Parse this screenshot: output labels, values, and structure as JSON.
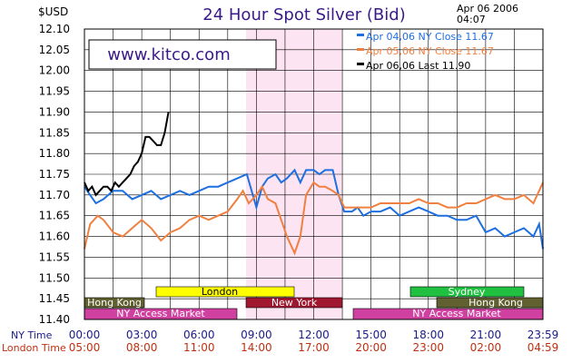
{
  "header": {
    "currency": "$USD",
    "title": "24 Hour Spot Silver (Bid)",
    "date": "Apr 06 2006",
    "time": "04:07",
    "watermark": "www.kitco.com"
  },
  "legend": [
    {
      "label": "Apr 04,06  NY Close 11.67",
      "color": "#1e6fe0"
    },
    {
      "label": "Apr 05,06  NY Close 11.67",
      "color": "#f08040"
    },
    {
      "label": "Apr 06,06  Last 11.90",
      "color": "#000000"
    }
  ],
  "axis": {
    "ny_time_label": "NY Time",
    "london_time_label": "London Time",
    "ny_ticks": [
      "00:00",
      "03:00",
      "06:00",
      "09:00",
      "12:00",
      "15:00",
      "18:00",
      "21:00",
      "23:59"
    ],
    "london_ticks": [
      "05:00",
      "08:00",
      "11:00",
      "14:00",
      "17:00",
      "20:00",
      "23:00",
      "02:00",
      "04:59"
    ]
  },
  "markets": [
    {
      "name": "London",
      "color": "#ffff00",
      "text_color": "#000000"
    },
    {
      "name": "New York",
      "color": "#a01830",
      "text_color": "#ffffff"
    },
    {
      "name": "Sydney",
      "color": "#20c040",
      "text_color": "#ffffff"
    },
    {
      "name": "Hong Kong",
      "color": "#606030",
      "text_color": "#ffffff"
    },
    {
      "name": "Hong Kong",
      "color": "#606030",
      "text_color": "#ffffff"
    },
    {
      "name": "NY Access Market",
      "color": "#d040a0",
      "text_color": "#ffffff"
    },
    {
      "name": "NY Access Market",
      "color": "#d040a0",
      "text_color": "#ffffff"
    }
  ],
  "chart_data": {
    "type": "line",
    "title": "24 Hour Spot Silver (Bid)",
    "ylabel": "$USD",
    "xlabel": "NY Time",
    "ylim": [
      11.4,
      12.1
    ],
    "xlim_hours": [
      0,
      24
    ],
    "grid": true,
    "legend_position": "top-right",
    "yticks": [
      "12.10",
      "12.05",
      "12.00",
      "11.95",
      "11.90",
      "11.85",
      "11.80",
      "11.75",
      "11.70",
      "11.65",
      "11.60",
      "11.55",
      "11.50",
      "11.45",
      "11.40"
    ],
    "series": [
      {
        "name": "Apr 04,06  NY Close 11.67",
        "color": "#1e6fe0",
        "x": [
          0,
          0.3,
          0.6,
          1,
          1.5,
          2,
          2.5,
          3,
          3.5,
          4,
          4.5,
          5,
          5.5,
          6,
          6.5,
          7,
          7.5,
          8,
          8.5,
          9,
          9.3,
          9.6,
          10,
          10.3,
          10.6,
          11,
          11.3,
          11.6,
          12,
          12.3,
          12.6,
          13,
          13.3,
          13.6,
          14,
          14.3,
          14.6,
          15,
          15.5,
          16,
          16.5,
          17,
          17.5,
          18,
          18.5,
          19,
          19.5,
          20,
          20.5,
          21,
          21.5,
          22,
          22.5,
          23,
          23.5,
          23.8,
          24
        ],
        "y": [
          11.72,
          11.7,
          11.68,
          11.69,
          11.71,
          11.71,
          11.69,
          11.7,
          11.71,
          11.69,
          11.7,
          11.71,
          11.7,
          11.71,
          11.72,
          11.72,
          11.73,
          11.74,
          11.75,
          11.67,
          11.72,
          11.74,
          11.75,
          11.73,
          11.74,
          11.76,
          11.73,
          11.76,
          11.76,
          11.75,
          11.76,
          11.76,
          11.7,
          11.66,
          11.66,
          11.67,
          11.65,
          11.66,
          11.66,
          11.67,
          11.65,
          11.66,
          11.67,
          11.66,
          11.65,
          11.65,
          11.64,
          11.64,
          11.65,
          11.61,
          11.62,
          11.6,
          11.61,
          11.62,
          11.6,
          11.63,
          11.57
        ]
      },
      {
        "name": "Apr 05,06  NY Close 11.67",
        "color": "#f08040",
        "x": [
          0,
          0.3,
          0.7,
          1,
          1.5,
          2,
          2.5,
          3,
          3.5,
          4,
          4.5,
          5,
          5.5,
          6,
          6.5,
          7,
          7.5,
          8,
          8.3,
          8.6,
          9,
          9.3,
          9.6,
          10,
          10.3,
          10.6,
          11,
          11.3,
          11.6,
          12,
          12.3,
          12.6,
          13,
          13.3,
          13.6,
          14,
          14.5,
          15,
          15.5,
          16,
          16.5,
          17,
          17.5,
          18,
          18.5,
          19,
          19.5,
          20,
          20.5,
          21,
          21.5,
          22,
          22.5,
          23,
          23.5,
          24
        ],
        "y": [
          11.57,
          11.63,
          11.65,
          11.64,
          11.61,
          11.6,
          11.62,
          11.64,
          11.62,
          11.59,
          11.61,
          11.62,
          11.64,
          11.65,
          11.64,
          11.65,
          11.66,
          11.69,
          11.71,
          11.68,
          11.7,
          11.72,
          11.69,
          11.68,
          11.64,
          11.6,
          11.56,
          11.6,
          11.7,
          11.73,
          11.72,
          11.72,
          11.71,
          11.7,
          11.67,
          11.67,
          11.67,
          11.67,
          11.68,
          11.68,
          11.68,
          11.68,
          11.69,
          11.68,
          11.68,
          11.67,
          11.67,
          11.68,
          11.68,
          11.69,
          11.7,
          11.69,
          11.69,
          11.7,
          11.68,
          11.73
        ]
      },
      {
        "name": "Apr 06,06  Last 11.90",
        "color": "#000000",
        "x": [
          0,
          0.2,
          0.4,
          0.6,
          0.8,
          1,
          1.2,
          1.4,
          1.6,
          1.8,
          2,
          2.2,
          2.4,
          2.6,
          2.8,
          3,
          3.2,
          3.4,
          3.6,
          3.8,
          4,
          4.2,
          4.4
        ],
        "y": [
          11.73,
          11.71,
          11.72,
          11.7,
          11.71,
          11.72,
          11.72,
          11.71,
          11.73,
          11.72,
          11.73,
          11.74,
          11.75,
          11.77,
          11.78,
          11.8,
          11.84,
          11.84,
          11.83,
          11.82,
          11.82,
          11.85,
          11.9
        ]
      }
    ]
  }
}
